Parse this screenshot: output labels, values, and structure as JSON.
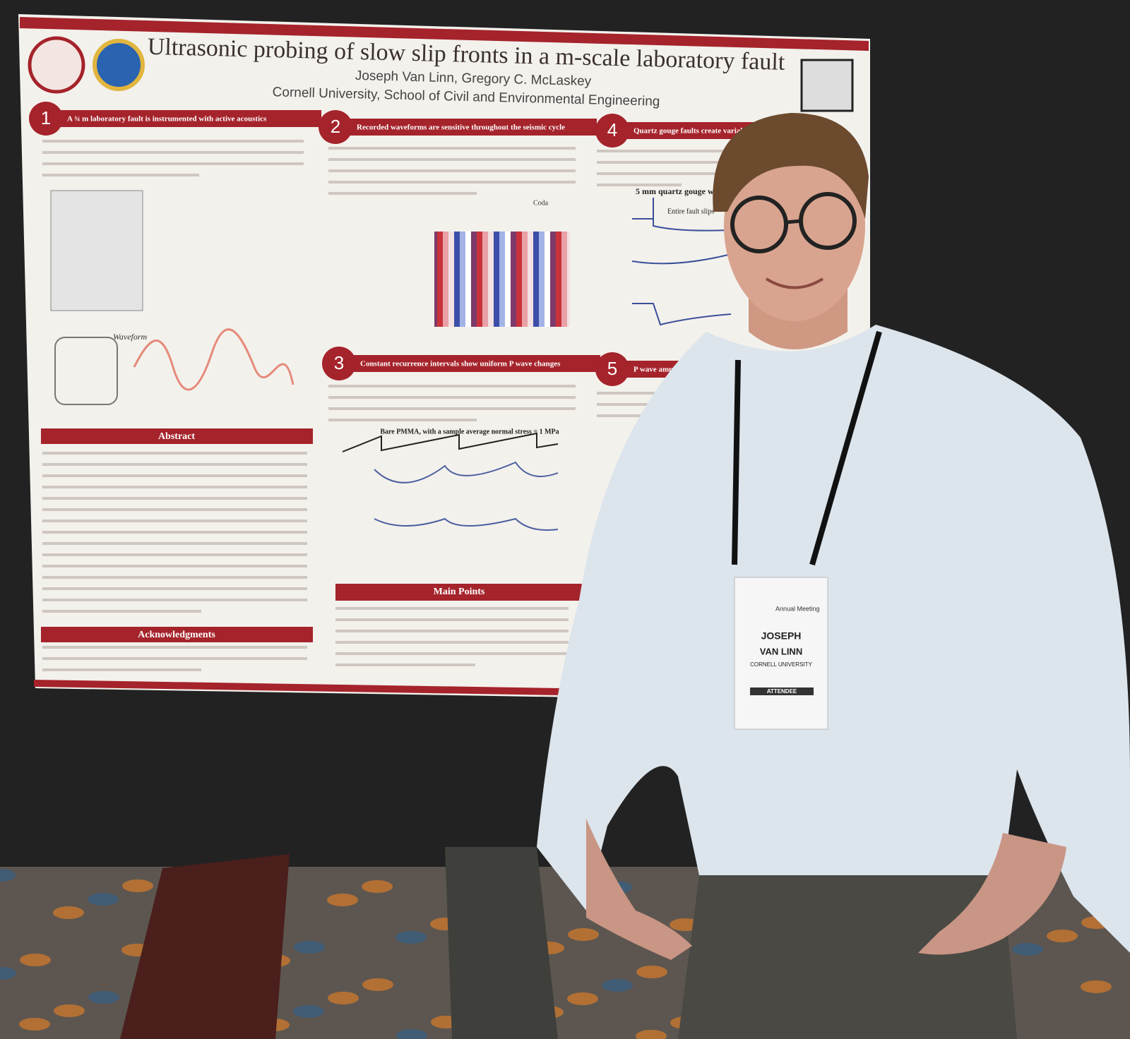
{
  "poster": {
    "title": "Ultrasonic probing of slow slip fronts in a m-scale laboratory fault",
    "authors": "Joseph Van Linn, Gregory C. McLaskey",
    "affiliation": "Cornell University, School of Civil and Environmental Engineering",
    "sections": [
      {
        "number": "1",
        "heading": "A ¾ m laboratory fault is instrumented with active acoustics"
      },
      {
        "number": "2",
        "heading": "Recorded waveforms are sensitive throughout the seismic cycle"
      },
      {
        "number": "3",
        "heading": "Constant recurrence intervals show uniform P wave changes"
      },
      {
        "number": "4",
        "heading": "Quartz gouge faults create variab"
      },
      {
        "number": "5",
        "heading": "P wave amplitudes reflec"
      }
    ],
    "panels": {
      "abstract": "Abstract",
      "acknowledgments": "Acknowledgments",
      "main_points": "Main Points"
    },
    "figure_labels": {
      "coda": "Coda",
      "bare_pmma": "Bare PMMA, with a sample average normal stress = 1 MPa",
      "quartz": "5 mm quartz gouge with samp",
      "entire_fault": "Entire fault slips",
      "waveform": "Waveform"
    }
  },
  "badge": {
    "event": "Annual Meeting",
    "first_name": "JOSEPH",
    "last_name": "VAN LINN",
    "organization": "CORNELL UNIVERSITY",
    "role": "ATTENDEE"
  }
}
